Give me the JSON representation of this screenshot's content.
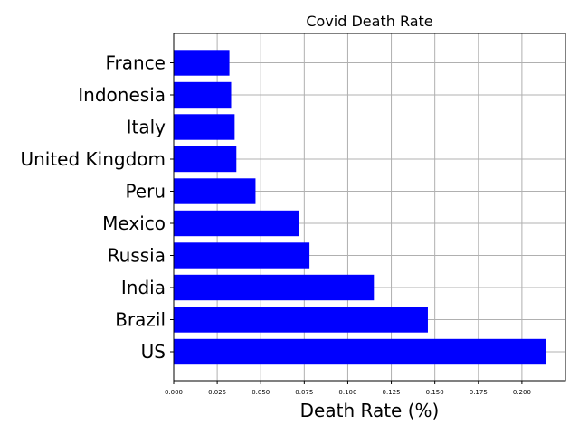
{
  "chart_data": {
    "type": "bar",
    "orientation": "horizontal",
    "title": "Covid Death Rate",
    "xlabel": "Death Rate (%)",
    "ylabel": "",
    "categories": [
      "US",
      "Brazil",
      "India",
      "Russia",
      "Mexico",
      "Peru",
      "United Kingdom",
      "Italy",
      "Indonesia",
      "France"
    ],
    "values": [
      0.214,
      0.146,
      0.115,
      0.078,
      0.072,
      0.047,
      0.036,
      0.035,
      0.033,
      0.032
    ],
    "xlim": [
      0.0,
      0.225
    ],
    "xticks": [
      "0.000",
      "0.025",
      "0.050",
      "0.075",
      "0.100",
      "0.125",
      "0.150",
      "0.175",
      "0.200"
    ],
    "xtick_values": [
      0.0,
      0.025,
      0.05,
      0.075,
      0.1,
      0.125,
      0.15,
      0.175,
      0.2
    ],
    "grid": true,
    "bar_color": "#0000ff"
  }
}
